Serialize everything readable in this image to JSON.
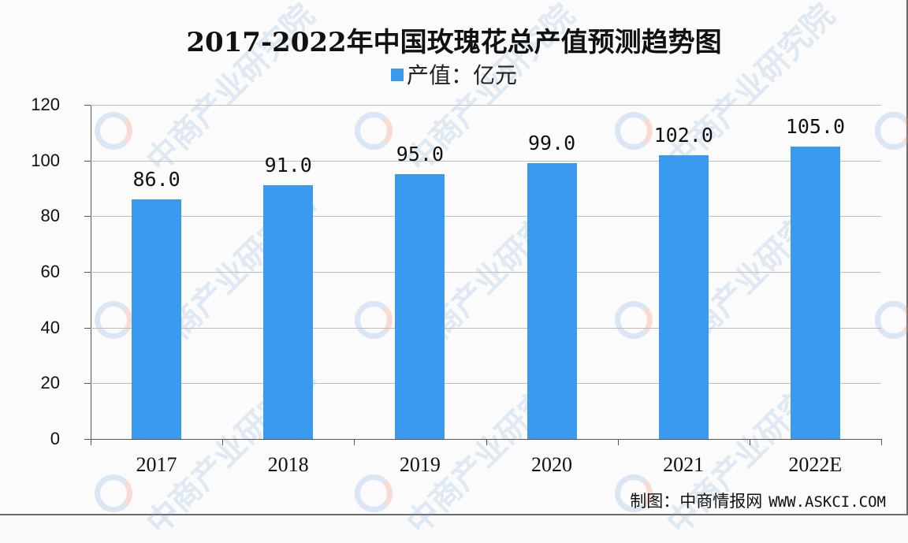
{
  "title": "2017-2022年中国玫瑰花总产值预测趋势图",
  "legend": {
    "label": "产值：亿元",
    "color": "#3a9af0"
  },
  "footer": {
    "label": "制图：中商情报网",
    "url": "WWW.ASKCI.COM"
  },
  "watermark": "中商产业研究院",
  "y_ticks": [
    "0",
    "20",
    "40",
    "60",
    "80",
    "100",
    "120"
  ],
  "bars": [
    {
      "category": "2017",
      "value_label": "86.0"
    },
    {
      "category": "2018",
      "value_label": "91.0"
    },
    {
      "category": "2019",
      "value_label": "95.0"
    },
    {
      "category": "2020",
      "value_label": "99.0"
    },
    {
      "category": "2021",
      "value_label": "102.0"
    },
    {
      "category": "2022E",
      "value_label": "105.0"
    }
  ],
  "chart_data": {
    "type": "bar",
    "title": "2017-2022年中国玫瑰花总产值预测趋势图",
    "categories": [
      "2017",
      "2018",
      "2019",
      "2020",
      "2021",
      "2022E"
    ],
    "series": [
      {
        "name": "产值：亿元",
        "values": [
          86.0,
          91.0,
          95.0,
          99.0,
          102.0,
          105.0
        ],
        "color": "#3a9af0"
      }
    ],
    "xlabel": "",
    "ylabel": "",
    "ylim": [
      0,
      120
    ],
    "yticks": [
      0,
      20,
      40,
      60,
      80,
      100,
      120
    ],
    "grid": true,
    "legend_position": "top",
    "data_labels": true,
    "source": "制图：中商情报网 WWW.ASKCI.COM"
  }
}
